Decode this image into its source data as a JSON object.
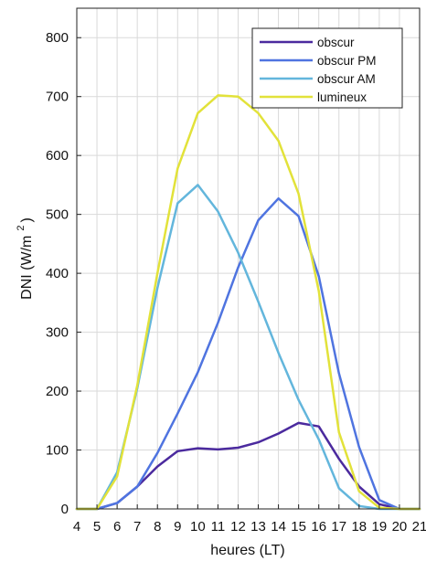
{
  "chart_data": {
    "type": "line",
    "xlabel": "heures (LT)",
    "ylabel_main": "DNI (W/m",
    "ylabel_sup": "2",
    "ylabel_close": ")",
    "xlim": [
      4,
      21
    ],
    "ylim": [
      0,
      850
    ],
    "xticks": [
      4,
      5,
      6,
      7,
      8,
      9,
      10,
      11,
      12,
      13,
      14,
      15,
      16,
      17,
      18,
      19,
      20,
      21
    ],
    "yticks": [
      0,
      100,
      200,
      300,
      400,
      500,
      600,
      700,
      800
    ],
    "grid": true,
    "legend_position": "top-right",
    "x": [
      4,
      5,
      6,
      7,
      8,
      9,
      10,
      11,
      12,
      13,
      14,
      15,
      16,
      17,
      18,
      19,
      20,
      21
    ],
    "series": [
      {
        "name": "obscur",
        "color": "#4b2a9e",
        "values": [
          0,
          0,
          10,
          38,
          72,
          98,
          103,
          101,
          104,
          113,
          128,
          146,
          140,
          85,
          38,
          8,
          0,
          0
        ]
      },
      {
        "name": "obscur PM",
        "color": "#4f74e0",
        "values": [
          0,
          0,
          10,
          38,
          95,
          162,
          232,
          316,
          410,
          490,
          527,
          497,
          395,
          230,
          105,
          15,
          0,
          0
        ]
      },
      {
        "name": "obscur AM",
        "color": "#63b6dc",
        "values": [
          0,
          0,
          62,
          205,
          375,
          519,
          550,
          505,
          435,
          352,
          265,
          185,
          118,
          35,
          5,
          0,
          0,
          0
        ]
      },
      {
        "name": "lumineux",
        "color": "#e2e23a",
        "values": [
          0,
          0,
          55,
          210,
          400,
          578,
          672,
          702,
          700,
          672,
          625,
          535,
          370,
          130,
          30,
          2,
          0,
          0
        ]
      }
    ]
  }
}
